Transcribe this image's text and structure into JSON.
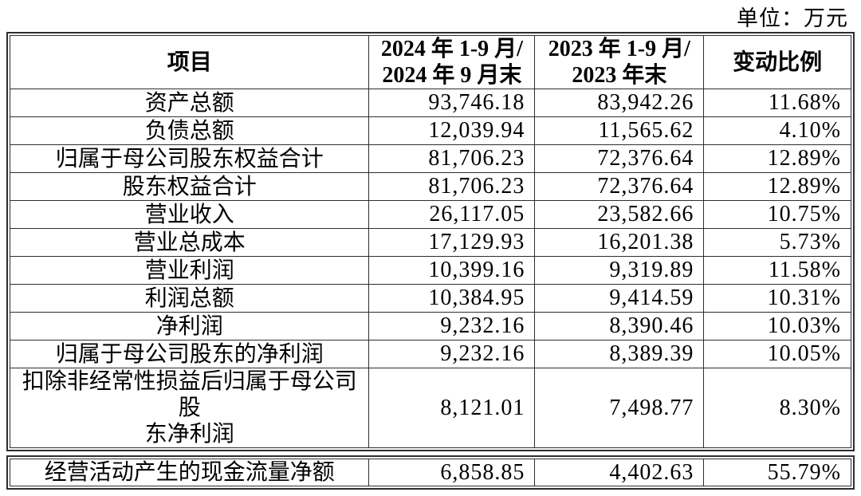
{
  "unit_label": "单位：万元",
  "colors": {
    "background": "#ffffff",
    "text": "#000000",
    "border": "#2e2e2e"
  },
  "summary_table": {
    "headers": {
      "item": "项目",
      "period_2024": "2024 年 1-9 月/\n2024 年 9 月末",
      "period_2023": "2023 年 1-9 月/\n2023 年末",
      "change": "变动比例"
    },
    "rows": [
      {
        "item": "资产总额",
        "v2024": "93,746.18",
        "v2023": "83,942.26",
        "change": "11.68%"
      },
      {
        "item": "负债总额",
        "v2024": "12,039.94",
        "v2023": "11,565.62",
        "change": "4.10%"
      },
      {
        "item": "归属于母公司股东权益合计",
        "v2024": "81,706.23",
        "v2023": "72,376.64",
        "change": "12.89%"
      },
      {
        "item": "股东权益合计",
        "v2024": "81,706.23",
        "v2023": "72,376.64",
        "change": "12.89%"
      },
      {
        "item": "营业收入",
        "v2024": "26,117.05",
        "v2023": "23,582.66",
        "change": "10.75%"
      },
      {
        "item": "营业总成本",
        "v2024": "17,129.93",
        "v2023": "16,201.38",
        "change": "5.73%"
      },
      {
        "item": "营业利润",
        "v2024": "10,399.16",
        "v2023": "9,319.89",
        "change": "11.58%"
      },
      {
        "item": "利润总额",
        "v2024": "10,384.95",
        "v2023": "9,414.59",
        "change": "10.31%"
      },
      {
        "item": "净利润",
        "v2024": "9,232.16",
        "v2023": "8,390.46",
        "change": "10.03%"
      },
      {
        "item": "归属于母公司股东的净利润",
        "v2024": "9,232.16",
        "v2023": "8,389.39",
        "change": "10.05%"
      },
      {
        "item": "扣除非经常性损益后归属于母公司股\n东净利润",
        "v2024": "8,121.01",
        "v2023": "7,498.77",
        "change": "8.30%"
      }
    ]
  },
  "cashflow_table": {
    "rows": [
      {
        "item": "经营活动产生的现金流量净额",
        "v2024": "6,858.85",
        "v2023": "4,402.63",
        "change": "55.79%"
      }
    ]
  }
}
